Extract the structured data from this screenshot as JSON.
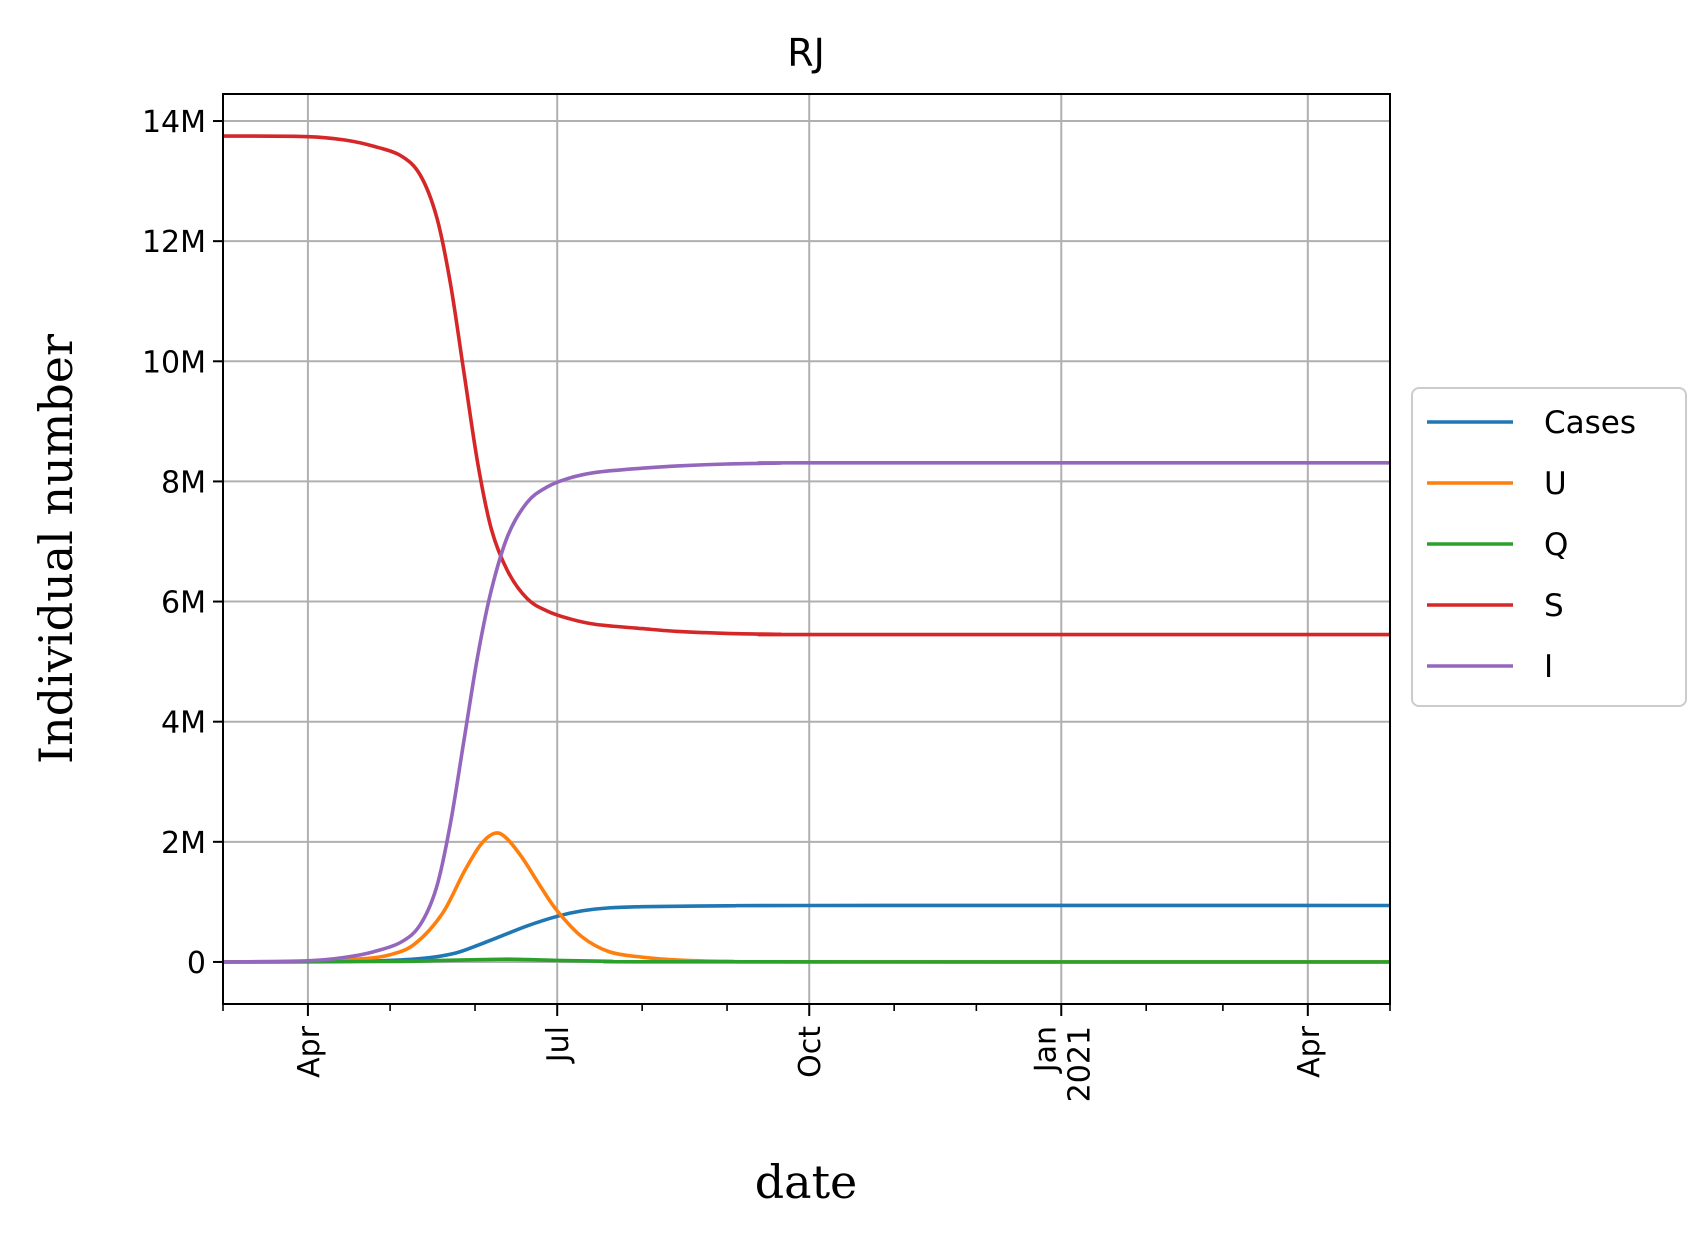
{
  "chart_data": {
    "type": "line",
    "title": "RJ",
    "xlabel": "date",
    "ylabel": "Individual number",
    "x_range": [
      "2020-03-01",
      "2021-05-01"
    ],
    "ylim": [
      -700000,
      14450000
    ],
    "y_ticks": [
      {
        "value": 0,
        "label": "0"
      },
      {
        "value": 2000000,
        "label": "2M"
      },
      {
        "value": 4000000,
        "label": "4M"
      },
      {
        "value": 6000000,
        "label": "6M"
      },
      {
        "value": 8000000,
        "label": "8M"
      },
      {
        "value": 10000000,
        "label": "10M"
      },
      {
        "value": 12000000,
        "label": "12M"
      },
      {
        "value": 14000000,
        "label": "14M"
      }
    ],
    "x_major_ticks": [
      {
        "date": "2020-04-01",
        "label": [
          "Apr"
        ]
      },
      {
        "date": "2020-07-01",
        "label": [
          "Jul"
        ]
      },
      {
        "date": "2020-10-01",
        "label": [
          "Oct"
        ]
      },
      {
        "date": "2021-01-01",
        "label": [
          "Jan",
          "2021"
        ]
      },
      {
        "date": "2021-04-01",
        "label": [
          "Apr"
        ]
      }
    ],
    "x_minor_ticks": [
      "2020-05-01",
      "2020-06-01",
      "2020-08-01",
      "2020-09-01",
      "2020-11-01",
      "2020-12-01",
      "2021-02-01",
      "2021-03-01"
    ],
    "grid": true,
    "legend_position": "right-center",
    "series": [
      {
        "name": "Cases",
        "color": "#1f77b4",
        "points": [
          [
            "2020-03-01",
            0
          ],
          [
            "2020-04-01",
            2000
          ],
          [
            "2020-04-15",
            8000
          ],
          [
            "2020-05-01",
            25000
          ],
          [
            "2020-05-15",
            70000
          ],
          [
            "2020-05-25",
            150000
          ],
          [
            "2020-06-01",
            260000
          ],
          [
            "2020-06-10",
            420000
          ],
          [
            "2020-06-20",
            600000
          ],
          [
            "2020-07-01",
            760000
          ],
          [
            "2020-07-10",
            850000
          ],
          [
            "2020-07-20",
            900000
          ],
          [
            "2020-08-01",
            920000
          ],
          [
            "2020-09-01",
            935000
          ],
          [
            "2020-10-01",
            940000
          ],
          [
            "2021-05-01",
            940000
          ]
        ]
      },
      {
        "name": "U",
        "color": "#ff7f0e",
        "points": [
          [
            "2020-03-01",
            0
          ],
          [
            "2020-04-01",
            10000
          ],
          [
            "2020-04-20",
            50000
          ],
          [
            "2020-05-01",
            120000
          ],
          [
            "2020-05-10",
            300000
          ],
          [
            "2020-05-20",
            800000
          ],
          [
            "2020-05-28",
            1500000
          ],
          [
            "2020-06-03",
            1950000
          ],
          [
            "2020-06-08",
            2140000
          ],
          [
            "2020-06-12",
            2080000
          ],
          [
            "2020-06-18",
            1750000
          ],
          [
            "2020-06-25",
            1250000
          ],
          [
            "2020-07-01",
            850000
          ],
          [
            "2020-07-10",
            420000
          ],
          [
            "2020-07-20",
            170000
          ],
          [
            "2020-08-01",
            80000
          ],
          [
            "2020-08-15",
            30000
          ],
          [
            "2020-09-01",
            10000
          ],
          [
            "2020-10-01",
            0
          ],
          [
            "2021-05-01",
            0
          ]
        ]
      },
      {
        "name": "Q",
        "color": "#2ca02c",
        "points": [
          [
            "2020-03-01",
            0
          ],
          [
            "2020-05-01",
            8000
          ],
          [
            "2020-05-20",
            25000
          ],
          [
            "2020-06-10",
            45000
          ],
          [
            "2020-06-20",
            40000
          ],
          [
            "2020-07-01",
            25000
          ],
          [
            "2020-07-20",
            10000
          ],
          [
            "2020-08-15",
            2000
          ],
          [
            "2021-05-01",
            0
          ]
        ]
      },
      {
        "name": "S",
        "color": "#d62728",
        "points": [
          [
            "2020-03-01",
            13750000
          ],
          [
            "2020-04-01",
            13740000
          ],
          [
            "2020-04-15",
            13680000
          ],
          [
            "2020-04-25",
            13580000
          ],
          [
            "2020-05-05",
            13420000
          ],
          [
            "2020-05-12",
            13100000
          ],
          [
            "2020-05-18",
            12400000
          ],
          [
            "2020-05-23",
            11300000
          ],
          [
            "2020-05-28",
            9800000
          ],
          [
            "2020-06-02",
            8300000
          ],
          [
            "2020-06-07",
            7200000
          ],
          [
            "2020-06-13",
            6500000
          ],
          [
            "2020-06-20",
            6050000
          ],
          [
            "2020-06-27",
            5850000
          ],
          [
            "2020-07-05",
            5720000
          ],
          [
            "2020-07-15",
            5620000
          ],
          [
            "2020-08-01",
            5550000
          ],
          [
            "2020-08-15",
            5500000
          ],
          [
            "2020-09-01",
            5470000
          ],
          [
            "2020-09-20",
            5455000
          ],
          [
            "2020-10-01",
            5450000
          ],
          [
            "2021-05-01",
            5450000
          ]
        ]
      },
      {
        "name": "I",
        "color": "#9467bd",
        "points": [
          [
            "2020-03-01",
            0
          ],
          [
            "2020-04-01",
            20000
          ],
          [
            "2020-04-15",
            80000
          ],
          [
            "2020-04-25",
            170000
          ],
          [
            "2020-05-05",
            330000
          ],
          [
            "2020-05-12",
            620000
          ],
          [
            "2020-05-18",
            1250000
          ],
          [
            "2020-05-23",
            2300000
          ],
          [
            "2020-05-28",
            3700000
          ],
          [
            "2020-06-02",
            5100000
          ],
          [
            "2020-06-07",
            6200000
          ],
          [
            "2020-06-13",
            7100000
          ],
          [
            "2020-06-20",
            7650000
          ],
          [
            "2020-06-27",
            7900000
          ],
          [
            "2020-07-05",
            8050000
          ],
          [
            "2020-07-15",
            8150000
          ],
          [
            "2020-08-01",
            8220000
          ],
          [
            "2020-08-15",
            8260000
          ],
          [
            "2020-09-01",
            8290000
          ],
          [
            "2020-09-20",
            8305000
          ],
          [
            "2020-10-01",
            8310000
          ],
          [
            "2021-05-01",
            8310000
          ]
        ]
      }
    ]
  }
}
